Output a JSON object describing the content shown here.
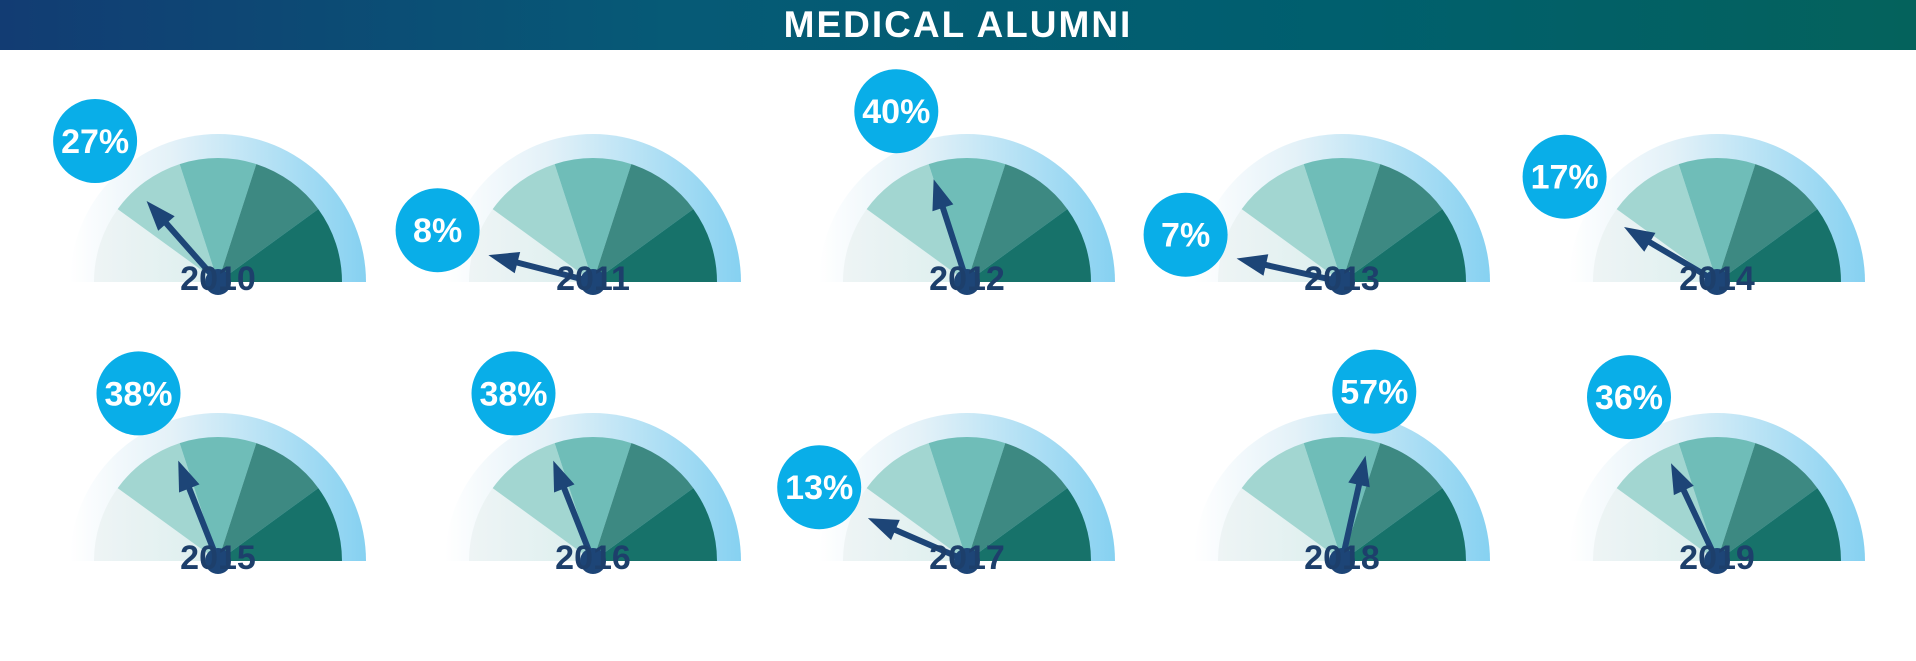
{
  "title": "MEDICAL ALUMNI",
  "colors": {
    "banner_left": "#123c73",
    "banner_right": "#04625c",
    "outer_ring": "#86d1f1",
    "segment_1": "#dcefee",
    "segment_2": "#a2d6d1",
    "segment_3": "#6fbdb8",
    "segment_4": "#3d8982",
    "segment_5": "#17726a",
    "needle": "#1d4577",
    "badge": "#09aee8",
    "year_text": "#1d3f6b"
  },
  "chart_data": {
    "type": "gauge",
    "scale": [
      0,
      100
    ],
    "title": "MEDICAL ALUMNI",
    "categories": [
      "2010",
      "2011",
      "2012",
      "2013",
      "2014",
      "2015",
      "2016",
      "2017",
      "2018",
      "2019"
    ],
    "values": [
      27,
      8,
      40,
      7,
      17,
      38,
      38,
      13,
      57,
      36
    ],
    "labels": [
      "27%",
      "8%",
      "40%",
      "7%",
      "17%",
      "38%",
      "38%",
      "13%",
      "57%",
      "36%"
    ]
  }
}
